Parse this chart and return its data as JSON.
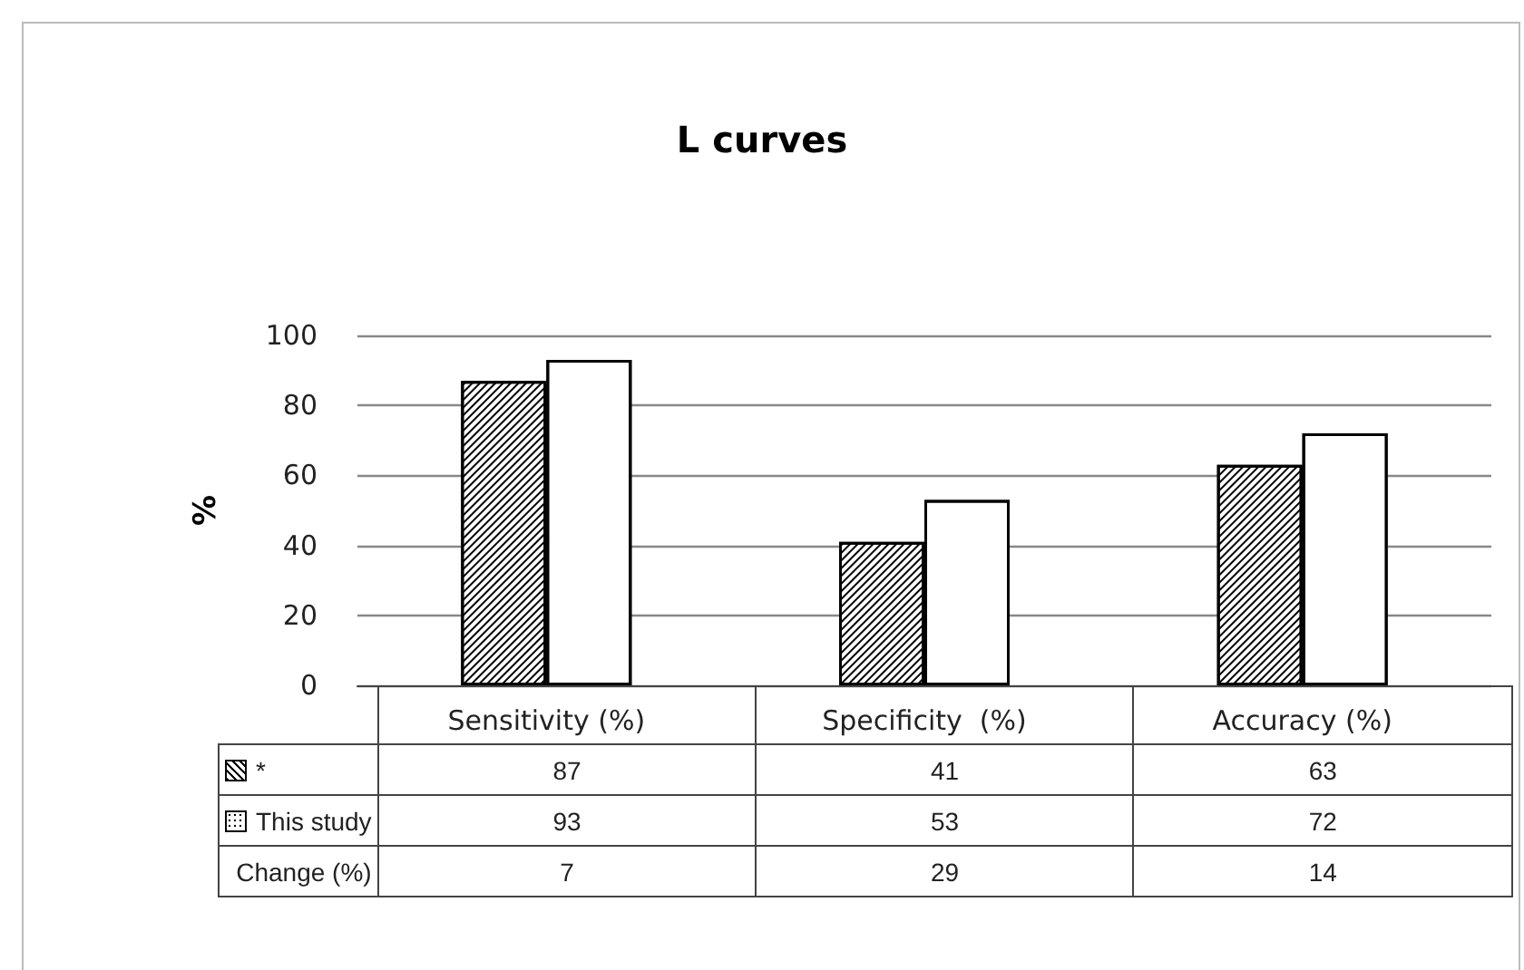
{
  "chart_data": {
    "type": "bar",
    "title": "L curves",
    "ylabel": "%",
    "categories": [
      "Sensitivity (%)",
      "Specificity  (%)",
      "Accuracy (%)"
    ],
    "series": [
      {
        "name": "*",
        "color": "#ffffff",
        "values": [
          87,
          41,
          63
        ]
      },
      {
        "name": "This study",
        "color": "#ffffff",
        "values": [
          93,
          53,
          72
        ]
      }
    ],
    "ylim": [
      0,
      100
    ],
    "yticks": [
      0,
      20,
      40,
      60,
      80,
      100
    ],
    "grid": "y",
    "data_labels": true,
    "legend": "bottom left",
    "annotations": [
      "Change (%)",
      "7",
      "29",
      "14"
    ]
  }
}
